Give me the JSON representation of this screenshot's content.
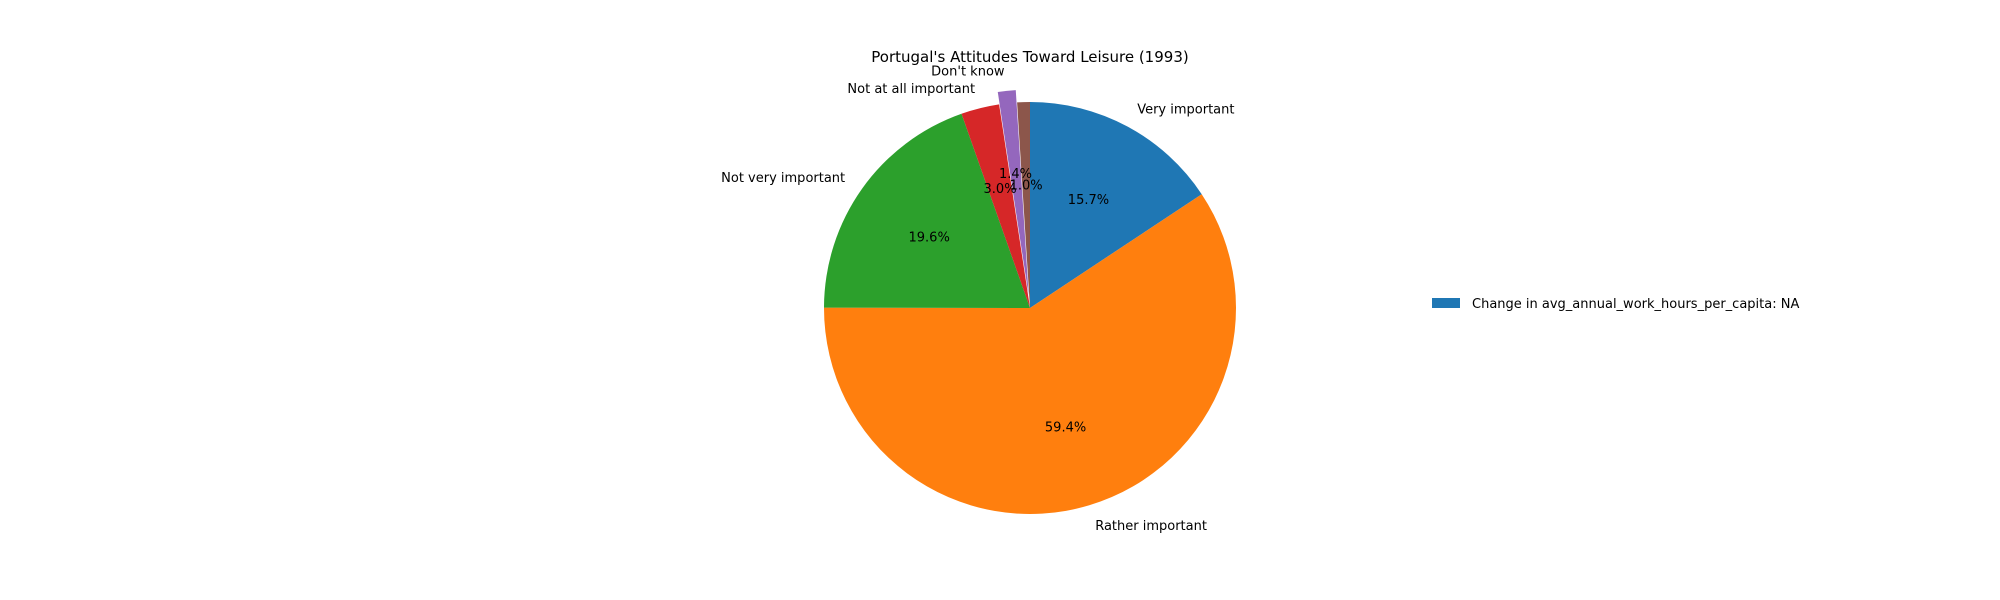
{
  "chart_data": {
    "type": "pie",
    "title": "Portugal's Attitudes Toward Leisure (1993)",
    "start_angle_deg": 90,
    "direction": "clockwise",
    "autopct_format": "{:.1f}%",
    "slices": [
      {
        "label": "Very important",
        "value": 15.7,
        "pct_label": "15.7%",
        "color": "#1f77b4",
        "explode": 0
      },
      {
        "label": "Rather important",
        "value": 59.4,
        "pct_label": "59.4%",
        "color": "#ff7f0e",
        "explode": 0
      },
      {
        "label": "Not very important",
        "value": 19.6,
        "pct_label": "19.6%",
        "color": "#2ca02c",
        "explode": 0
      },
      {
        "label": "Not at all important",
        "value": 3.0,
        "pct_label": "3.0%",
        "color": "#d62728",
        "explode": 0
      },
      {
        "label": "Don't know",
        "value": 1.4,
        "pct_label": "1.4%",
        "color": "#9467bd",
        "explode": 0.06
      },
      {
        "label": "",
        "value": 1.0,
        "pct_label": "1.0%",
        "color": "#8c564b",
        "explode": 0
      }
    ],
    "legend": {
      "placement": "center-right",
      "entries": [
        {
          "label": "Change in avg_annual_work_hours_per_capita: NA",
          "color": "#1f77b4"
        }
      ]
    }
  }
}
